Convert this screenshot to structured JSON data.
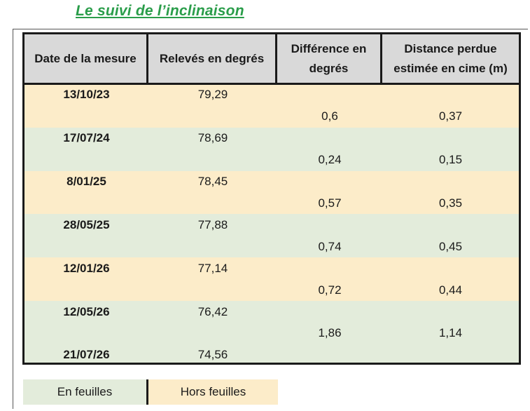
{
  "title": "Le suivi de l’inclinaison",
  "colors": {
    "title_green": "#2a9d4a",
    "header_gray": "#d9d9d9",
    "hors_feuilles": "#fcecc9",
    "en_feuilles": "#e3ecdb"
  },
  "table": {
    "headers": {
      "date": "Date de la mesure",
      "releves": "Relevés en degrés",
      "difference": "Différence en degrés",
      "distance": "Distance perdue estimée en cime (m)"
    },
    "headers_lines": {
      "difference": [
        "Différence en",
        "degrés"
      ],
      "distance": [
        "Distance perdue",
        "estimée en cime (m)"
      ]
    },
    "rows": [
      {
        "date": "13/10/23",
        "releve": "79,29",
        "season": "hors_feuilles"
      },
      {
        "date": "17/07/24",
        "releve": "78,69",
        "season": "en_feuilles"
      },
      {
        "date": "8/01/25",
        "releve": "78,45",
        "season": "hors_feuilles"
      },
      {
        "date": "28/05/25",
        "releve": "77,88",
        "season": "en_feuilles"
      },
      {
        "date": "12/01/26",
        "releve": "77,14",
        "season": "hors_feuilles"
      },
      {
        "date": "12/05/26",
        "releve": "76,42",
        "season": "en_feuilles"
      },
      {
        "date": "21/07/26",
        "releve": "74,56",
        "season": "en_feuilles"
      }
    ],
    "differences": [
      {
        "difference": "0,6",
        "distance": "0,37"
      },
      {
        "difference": "0,24",
        "distance": "0,15"
      },
      {
        "difference": "0,57",
        "distance": "0,35"
      },
      {
        "difference": "0,74",
        "distance": "0,45"
      },
      {
        "difference": "0,72",
        "distance": "0,44"
      },
      {
        "difference": "1,86",
        "distance": "1,14"
      }
    ]
  },
  "legend": {
    "en_feuilles": "En feuilles",
    "hors_feuilles": "Hors feuilles"
  }
}
